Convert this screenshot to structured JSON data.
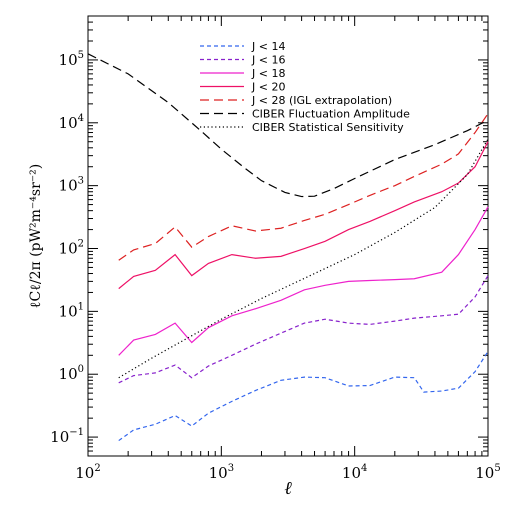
{
  "chart_data": {
    "type": "line",
    "xlabel": "ℓ",
    "ylabel": "ℓCℓ/2π   (pW²m⁻⁴sr⁻²)",
    "xscale": "log",
    "yscale": "log",
    "xlim": [
      100,
      100000
    ],
    "ylim": [
      0.05,
      500000
    ],
    "grid": false,
    "legend_position": "top-right",
    "x_ticks": [
      {
        "value": 100,
        "base": "10",
        "exp": "2"
      },
      {
        "value": 1000,
        "base": "10",
        "exp": "3"
      },
      {
        "value": 10000,
        "base": "10",
        "exp": "4"
      },
      {
        "value": 100000,
        "base": "10",
        "exp": "5"
      }
    ],
    "y_ticks": [
      {
        "value": 0.1,
        "base": "10",
        "exp": "−1"
      },
      {
        "value": 1,
        "base": "10",
        "exp": "0"
      },
      {
        "value": 10,
        "base": "10",
        "exp": "1"
      },
      {
        "value": 100,
        "base": "10",
        "exp": "2"
      },
      {
        "value": 1000,
        "base": "10",
        "exp": "3"
      },
      {
        "value": 10000,
        "base": "10",
        "exp": "4"
      },
      {
        "value": 100000,
        "base": "10",
        "exp": "5"
      }
    ],
    "series": [
      {
        "name": "J < 14",
        "color": "#3366ee",
        "dash": "short",
        "points": [
          [
            170,
            0.088
          ],
          [
            220,
            0.13
          ],
          [
            320,
            0.16
          ],
          [
            450,
            0.22
          ],
          [
            600,
            0.15
          ],
          [
            800,
            0.24
          ],
          [
            1200,
            0.37
          ],
          [
            1800,
            0.55
          ],
          [
            2800,
            0.8
          ],
          [
            4200,
            0.9
          ],
          [
            6000,
            0.88
          ],
          [
            9000,
            0.65
          ],
          [
            13000,
            0.66
          ],
          [
            20000,
            0.9
          ],
          [
            28000,
            0.88
          ],
          [
            33000,
            0.52
          ],
          [
            45000,
            0.54
          ],
          [
            60000,
            0.6
          ],
          [
            80000,
            1.1
          ],
          [
            100000,
            2.3
          ]
        ]
      },
      {
        "name": "J < 16",
        "color": "#8822cc",
        "dash": "short",
        "points": [
          [
            170,
            0.73
          ],
          [
            220,
            0.95
          ],
          [
            320,
            1.05
          ],
          [
            450,
            1.4
          ],
          [
            600,
            0.88
          ],
          [
            800,
            1.35
          ],
          [
            1200,
            2.0
          ],
          [
            1800,
            3.0
          ],
          [
            2800,
            4.5
          ],
          [
            4200,
            6.5
          ],
          [
            6000,
            7.5
          ],
          [
            9000,
            6.5
          ],
          [
            13000,
            6.2
          ],
          [
            20000,
            7.0
          ],
          [
            28000,
            7.8
          ],
          [
            45000,
            8.5
          ],
          [
            60000,
            9.0
          ],
          [
            80000,
            17
          ],
          [
            100000,
            37
          ]
        ]
      },
      {
        "name": "J < 18",
        "color": "#ee22cc",
        "dash": "solid",
        "points": [
          [
            170,
            2.0
          ],
          [
            220,
            3.5
          ],
          [
            320,
            4.3
          ],
          [
            450,
            6.5
          ],
          [
            600,
            3.2
          ],
          [
            800,
            5.5
          ],
          [
            1200,
            8.5
          ],
          [
            1800,
            11
          ],
          [
            2800,
            15
          ],
          [
            4200,
            22
          ],
          [
            6000,
            26
          ],
          [
            9000,
            30
          ],
          [
            13000,
            31
          ],
          [
            20000,
            32
          ],
          [
            28000,
            33
          ],
          [
            45000,
            42
          ],
          [
            60000,
            80
          ],
          [
            80000,
            200
          ],
          [
            100000,
            460
          ]
        ]
      },
      {
        "name": "J < 20",
        "color": "#ee1166",
        "dash": "solid",
        "points": [
          [
            170,
            23
          ],
          [
            220,
            36
          ],
          [
            320,
            45
          ],
          [
            450,
            80
          ],
          [
            600,
            37
          ],
          [
            800,
            58
          ],
          [
            1200,
            80
          ],
          [
            1800,
            70
          ],
          [
            2800,
            75
          ],
          [
            4200,
            100
          ],
          [
            6000,
            130
          ],
          [
            9000,
            200
          ],
          [
            13000,
            270
          ],
          [
            20000,
            400
          ],
          [
            28000,
            550
          ],
          [
            45000,
            800
          ],
          [
            60000,
            1100
          ],
          [
            80000,
            2000
          ],
          [
            100000,
            5000
          ]
        ]
      },
      {
        "name": "J < 28 (IGL extrapolation)",
        "color": "#dd2222",
        "dash": "long",
        "points": [
          [
            170,
            65
          ],
          [
            220,
            95
          ],
          [
            320,
            120
          ],
          [
            450,
            220
          ],
          [
            600,
            105
          ],
          [
            800,
            155
          ],
          [
            1200,
            230
          ],
          [
            1800,
            190
          ],
          [
            2800,
            210
          ],
          [
            4200,
            280
          ],
          [
            6000,
            350
          ],
          [
            9000,
            500
          ],
          [
            13000,
            700
          ],
          [
            20000,
            1000
          ],
          [
            28000,
            1400
          ],
          [
            45000,
            2200
          ],
          [
            60000,
            3200
          ],
          [
            80000,
            7000
          ],
          [
            100000,
            14000
          ]
        ]
      },
      {
        "name": "CIBER Fluctuation Amplitude",
        "color": "#000000",
        "dash": "long",
        "points": [
          [
            100,
            125000
          ],
          [
            200,
            60000
          ],
          [
            400,
            21000
          ],
          [
            700,
            7500
          ],
          [
            1000,
            3800
          ],
          [
            1500,
            1900
          ],
          [
            2000,
            1200
          ],
          [
            3000,
            780
          ],
          [
            4000,
            670
          ],
          [
            5000,
            680
          ],
          [
            7000,
            900
          ],
          [
            10000,
            1300
          ],
          [
            20000,
            2600
          ],
          [
            40000,
            4500
          ],
          [
            70000,
            7500
          ],
          [
            100000,
            11000
          ]
        ]
      },
      {
        "name": "CIBER Statistical Sensitivity",
        "color": "#000000",
        "dash": "dot",
        "points": [
          [
            170,
            0.88
          ],
          [
            300,
            1.8
          ],
          [
            500,
            3.3
          ],
          [
            1000,
            7.5
          ],
          [
            2000,
            16
          ],
          [
            4000,
            32
          ],
          [
            10000,
            80
          ],
          [
            20000,
            180
          ],
          [
            40000,
            450
          ],
          [
            70000,
            1500
          ],
          [
            100000,
            5500
          ]
        ]
      }
    ]
  }
}
